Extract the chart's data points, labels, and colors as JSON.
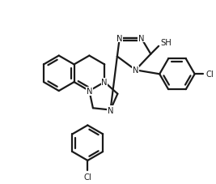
{
  "bg": "#ffffff",
  "lc": "#1a1a1a",
  "lw": 1.6,
  "figsize": [
    2.67,
    2.28
  ],
  "dpi": 100,
  "notes": "indolo[3,2-b]quinoxaline tricyclic + triazole-thione + 4-Cl-phenyl + bottom 5-Cl-phenyl"
}
